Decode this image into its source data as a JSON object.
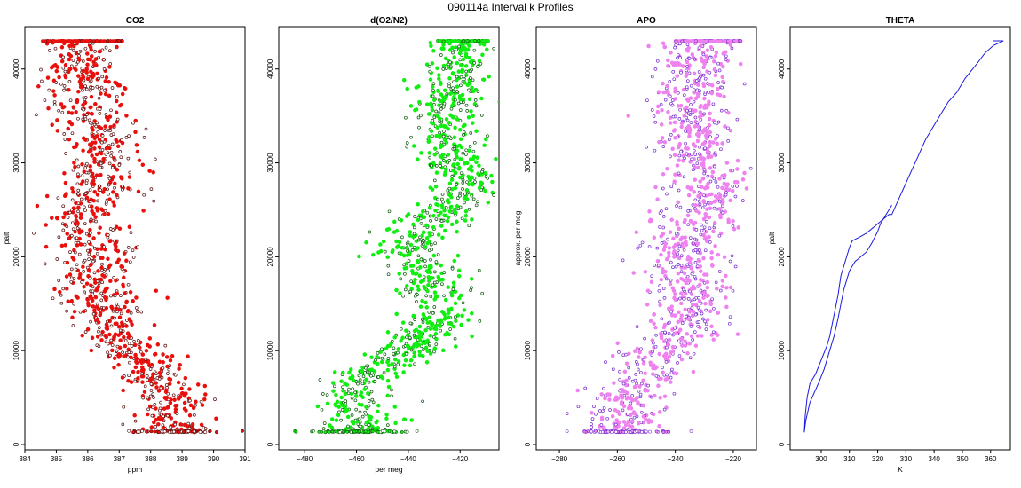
{
  "figure": {
    "title": "090114a   Interval k Profiles"
  },
  "chart_data": [
    {
      "type": "scatter",
      "title": "CO2",
      "xlabel": "ppm",
      "ylabel": "palt",
      "xlim": [
        384,
        391
      ],
      "ylim": [
        0,
        43000
      ],
      "xticks": [
        384,
        385,
        386,
        387,
        388,
        389,
        390,
        391
      ],
      "yticks": [
        0,
        10000,
        20000,
        30000,
        40000
      ],
      "color": "#e8110e",
      "edge_color": "#5a1010",
      "profile": [
        [
          386.0,
          43000
        ],
        [
          385.8,
          40000
        ],
        [
          386.2,
          38000
        ],
        [
          386.0,
          35000
        ],
        [
          386.5,
          32000
        ],
        [
          386.5,
          29000
        ],
        [
          386.3,
          27000
        ],
        [
          386.0,
          24000
        ],
        [
          386.3,
          21000
        ],
        [
          386.2,
          18000
        ],
        [
          386.5,
          15000
        ],
        [
          386.7,
          12000
        ],
        [
          387.0,
          10500
        ],
        [
          387.8,
          8500
        ],
        [
          388.5,
          6000
        ],
        [
          388.7,
          3500
        ],
        [
          388.8,
          1500
        ]
      ],
      "spread": 0.6,
      "top_band": [
        384.5,
        387.1
      ]
    },
    {
      "type": "scatter",
      "title": "d(O2/N2)",
      "xlabel": "per meg",
      "ylabel": "",
      "xlim": [
        -490,
        -405
      ],
      "ylim": [
        0,
        43000
      ],
      "xticks": [
        -480,
        -460,
        -440,
        -420
      ],
      "yticks": [
        0,
        10000,
        20000,
        30000,
        40000
      ],
      "color": "#11ee11",
      "edge_color": "#0c5a0c",
      "profile": [
        [
          -420,
          43000
        ],
        [
          -421,
          40000
        ],
        [
          -423,
          37000
        ],
        [
          -427,
          34000
        ],
        [
          -424,
          31000
        ],
        [
          -418,
          28000
        ],
        [
          -422,
          26000
        ],
        [
          -433,
          23000
        ],
        [
          -440,
          21000
        ],
        [
          -433,
          18000
        ],
        [
          -428,
          15000
        ],
        [
          -433,
          12000
        ],
        [
          -440,
          10000
        ],
        [
          -452,
          8000
        ],
        [
          -460,
          6500
        ],
        [
          -462,
          4500
        ],
        [
          -458,
          2500
        ],
        [
          -460,
          1500
        ]
      ],
      "spread": 7,
      "top_band": [
        -429,
        -409
      ]
    },
    {
      "type": "scatter",
      "title": "APO",
      "xlabel": "",
      "ylabel": "approx. per meg",
      "xlim": [
        -288,
        -212
      ],
      "ylim": [
        0,
        43000
      ],
      "xticks": [
        -280,
        -260,
        -240,
        -220
      ],
      "yticks": [
        0,
        10000,
        20000,
        30000,
        40000
      ],
      "color": "#ee82ee",
      "edge_color": "#7a2fd0",
      "profile": [
        [
          -232,
          43000
        ],
        [
          -233,
          40000
        ],
        [
          -236,
          37000
        ],
        [
          -234,
          34000
        ],
        [
          -232,
          31000
        ],
        [
          -228,
          28000
        ],
        [
          -232,
          25000
        ],
        [
          -236,
          22000
        ],
        [
          -237,
          19000
        ],
        [
          -234,
          16000
        ],
        [
          -236,
          13000
        ],
        [
          -241,
          10500
        ],
        [
          -250,
          8000
        ],
        [
          -256,
          6000
        ],
        [
          -257,
          4000
        ],
        [
          -258,
          1500
        ]
      ],
      "spread": 7,
      "top_band": [
        -240,
        -217
      ]
    },
    {
      "type": "line",
      "title": "THETA",
      "xlabel": "K",
      "ylabel": "palt",
      "xlim": [
        289,
        367
      ],
      "ylim": [
        0,
        43000
      ],
      "xticks": [
        300,
        310,
        320,
        330,
        340,
        350,
        360
      ],
      "yticks": [
        0,
        10000,
        20000,
        30000,
        40000
      ],
      "color": "#1a1adf",
      "series": [
        {
          "x": [
            294,
            294.3,
            295,
            296,
            298,
            300,
            302,
            303,
            304,
            305,
            306,
            306.5,
            307,
            308,
            309,
            310,
            311,
            313,
            316,
            320,
            324,
            325,
            328,
            331,
            334,
            337,
            341,
            345,
            348,
            351,
            355,
            358,
            361,
            364.5,
            361
          ],
          "y": [
            1300,
            3000,
            5000,
            6500,
            7500,
            9000,
            10500,
            11500,
            13000,
            14500,
            16000,
            17000,
            18000,
            19000,
            20000,
            21000,
            21700,
            22000,
            22500,
            23500,
            24500,
            24500,
            26500,
            28500,
            30500,
            32500,
            34500,
            36500,
            37500,
            39000,
            40500,
            41700,
            42500,
            43000,
            43000
          ]
        },
        {
          "x": [
            294,
            294.5,
            296,
            299,
            301,
            303,
            304.5,
            306,
            307,
            308,
            309,
            310,
            311,
            312,
            314,
            316,
            318,
            320,
            321,
            323,
            325
          ],
          "y": [
            1300,
            2500,
            4500,
            6500,
            8000,
            10000,
            11500,
            13500,
            15000,
            16500,
            17500,
            18500,
            19000,
            19500,
            20000,
            20500,
            21500,
            22700,
            23500,
            24500,
            25500
          ]
        }
      ]
    }
  ]
}
